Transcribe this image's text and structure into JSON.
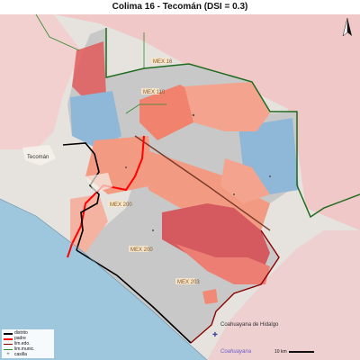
{
  "title": "Colima 16 - Tecomán (DSI = 0.3)",
  "roads": [
    {
      "label": "MEX 110"
    },
    {
      "label": "MEX 200"
    },
    {
      "label": "MEX 200"
    },
    {
      "label": "MEX 203"
    },
    {
      "label": "MEX 16"
    }
  ],
  "places": {
    "tecoman": "Tecomán",
    "coahuayana": "Coahuayana de Hidalgo",
    "coahuayana_blue": "Coahuayana"
  },
  "legend": {
    "items": [
      {
        "label": "distrito",
        "color": "#000000",
        "style": "thick"
      },
      {
        "label": "padre",
        "color": "#ff0000",
        "style": "thick"
      },
      {
        "label": "lim.edo.",
        "color": "#8b0000",
        "style": "thin"
      },
      {
        "label": "lim.munic.",
        "color": "#2e8b2e",
        "style": "thin"
      },
      {
        "label": "casilla",
        "color": "#555555",
        "style": "cross"
      }
    ]
  },
  "scale": {
    "label": "10 km"
  },
  "colors": {
    "sea": "#9ec7dd",
    "land_outside": "#e8e8e8",
    "pink_region": "#f0c4c4",
    "grey_district": "#c8c8c8",
    "salmon": "#f29b82",
    "light_salmon": "#f4b8a4",
    "dark_red": "#d25058",
    "blue": "#8fb8d8",
    "district_border": "#000000",
    "parent_border": "#ff0000",
    "state_border": "#8b0000",
    "muni_border": "#2e8b2e"
  }
}
